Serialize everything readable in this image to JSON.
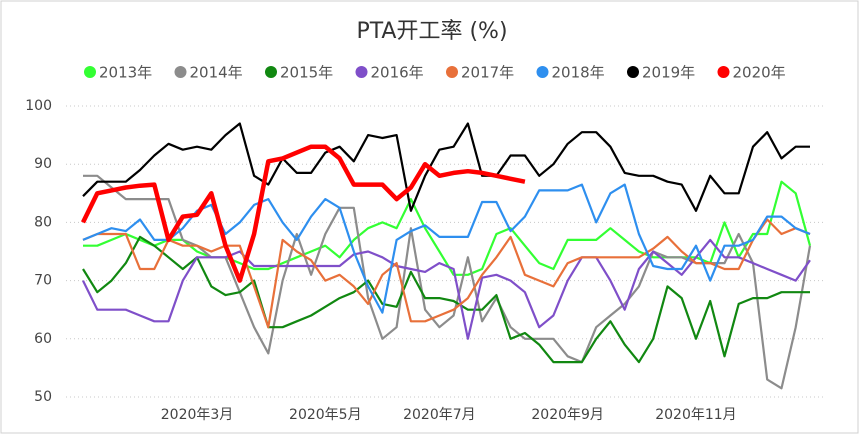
{
  "chart_data": {
    "type": "line",
    "title": "PTA开工率 (%)",
    "categories": [
      null,
      null,
      null,
      null,
      null,
      null,
      null,
      null,
      "2020年3月",
      null,
      null,
      null,
      null,
      null,
      null,
      null,
      null,
      "2020年5月",
      null,
      null,
      null,
      null,
      null,
      null,
      null,
      "2020年7月",
      null,
      null,
      null,
      null,
      null,
      null,
      null,
      null,
      "2020年9月",
      null,
      null,
      null,
      null,
      null,
      null,
      null,
      null,
      "2020年11月",
      null,
      null,
      null,
      null,
      null,
      null,
      null,
      null
    ],
    "ylim": [
      50,
      100
    ],
    "yticks": [
      50,
      60,
      70,
      80,
      90,
      100
    ],
    "grid": true,
    "legend": "top",
    "series": [
      {
        "name": "2013年",
        "color": "#33ff33",
        "values": [
          76,
          76,
          77,
          78,
          77,
          76,
          77,
          77,
          75,
          74,
          74,
          73,
          72,
          72,
          73,
          74,
          75,
          76,
          74,
          77,
          79,
          80,
          79,
          84,
          79,
          75,
          71,
          71,
          72,
          78,
          79,
          76,
          73,
          72,
          77,
          77,
          77,
          79,
          77,
          75,
          74,
          74,
          74,
          74,
          73,
          80,
          74,
          78,
          78,
          87,
          85,
          76
        ]
      },
      {
        "name": "2014年",
        "color": "#8c8c8c",
        "values": [
          88,
          88,
          86,
          84,
          84,
          84,
          84,
          77,
          76,
          74,
          74,
          68,
          62,
          57.5,
          70,
          78,
          71,
          78,
          82.5,
          82.5,
          67,
          60,
          62,
          79,
          65,
          62,
          64,
          74,
          63,
          67,
          62,
          60,
          60,
          60,
          57,
          56,
          62,
          64,
          66,
          69,
          75,
          74,
          74,
          73,
          73,
          73,
          78,
          73,
          53,
          51.5,
          62,
          76
        ]
      },
      {
        "name": "2015年",
        "color": "#118811",
        "values": [
          72,
          68,
          70,
          73,
          77.5,
          76,
          74,
          72,
          74,
          69,
          67.5,
          68,
          70,
          62,
          62,
          63,
          64,
          65.5,
          67,
          68,
          70,
          66,
          65.5,
          71.5,
          67,
          67,
          66.5,
          65,
          65,
          67.5,
          60,
          61,
          59,
          56,
          56,
          56,
          60,
          63,
          59,
          56,
          60,
          69,
          67,
          60,
          66.5,
          57,
          66,
          67,
          67,
          68,
          68,
          68
        ]
      },
      {
        "name": "2016年",
        "color": "#7f4fc9",
        "values": [
          70,
          65,
          65,
          65,
          64,
          63,
          63,
          70,
          74,
          74,
          74,
          75,
          72.5,
          72.5,
          72.5,
          72.5,
          72.5,
          72.5,
          72.5,
          74.5,
          75,
          74,
          72.5,
          72,
          71.5,
          73,
          72,
          60,
          70.5,
          71,
          70,
          68,
          62,
          64,
          70,
          74,
          74,
          70,
          65,
          72,
          75,
          73,
          71,
          74,
          77,
          74,
          74,
          73,
          72,
          71,
          70,
          73.5
        ]
      },
      {
        "name": "2017年",
        "color": "#e8703a",
        "values": [
          77,
          78,
          78,
          78,
          72,
          72,
          77,
          76,
          76,
          75,
          76,
          76,
          69,
          62,
          77,
          75,
          73.5,
          70,
          71,
          69,
          66,
          71,
          73,
          63,
          63,
          64,
          65,
          67,
          71,
          74,
          77.5,
          71,
          70,
          69,
          73,
          74,
          74,
          74,
          74,
          74,
          75.5,
          77.5,
          75,
          73,
          73,
          72,
          72,
          77,
          80.5,
          78,
          79,
          78
        ]
      },
      {
        "name": "2018年",
        "color": "#2e8fef",
        "values": [
          77,
          78,
          79,
          78.5,
          80.5,
          77,
          77,
          79,
          82,
          83,
          78,
          80,
          83,
          84,
          80,
          77,
          81,
          84,
          82.5,
          75,
          69,
          64.5,
          77,
          78.5,
          79.5,
          77.5,
          77.5,
          77.5,
          83.5,
          83.5,
          78.5,
          81,
          85.5,
          85.5,
          85.5,
          86.5,
          80,
          85,
          86.5,
          78,
          72.5,
          72,
          72,
          76,
          70,
          76,
          76,
          77,
          81,
          81,
          79,
          78
        ]
      },
      {
        "name": "2019年",
        "color": "#000000",
        "values": [
          84.5,
          87,
          87,
          87,
          89,
          91.5,
          93.5,
          92.5,
          93,
          92.5,
          95,
          97,
          88,
          86.5,
          91,
          88.5,
          88.5,
          92,
          93,
          90.5,
          95,
          94.5,
          95,
          82,
          88,
          92.5,
          93,
          97,
          88,
          88,
          91.5,
          91.5,
          88,
          90,
          93.5,
          95.5,
          95.5,
          93,
          88.5,
          88,
          88,
          87,
          86.5,
          82,
          88,
          85,
          85,
          93,
          95.5,
          91,
          93,
          93
        ]
      },
      {
        "name": "2020年",
        "color": "#ff0000",
        "values": [
          80,
          85,
          85.5,
          86,
          86.3,
          86.5,
          77,
          81,
          81.3,
          85,
          76,
          70,
          78,
          90.5,
          91,
          92,
          93,
          93,
          91,
          86.5,
          86.5,
          86.5,
          84,
          86,
          90,
          88,
          88.5,
          88.8,
          88.5,
          88,
          87.5,
          87,
          null,
          null,
          null,
          null,
          null,
          null,
          null,
          null,
          null,
          null,
          null,
          null,
          null,
          null,
          null,
          null,
          null,
          null,
          null,
          null
        ]
      }
    ]
  }
}
